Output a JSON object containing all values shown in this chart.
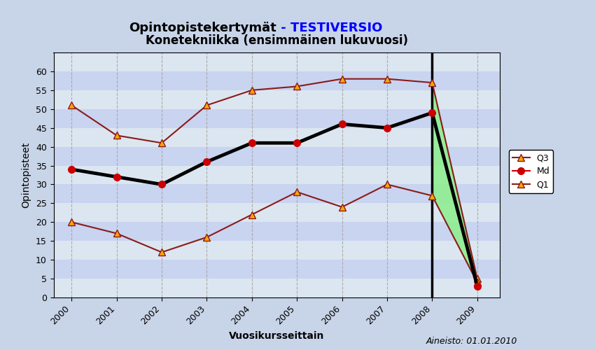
{
  "title1": "Opintopistekertymät",
  "title1_suffix": " - TESTIVERSIO",
  "title2": "Konetekniikka (ensimmäinen lukuvuosi)",
  "xlabel": "Vuosikursseittain",
  "ylabel": "Opintopisteet",
  "footnote": "Aineisto: 01.01.2010",
  "years": [
    2000,
    2001,
    2002,
    2003,
    2004,
    2005,
    2006,
    2007,
    2008,
    2009
  ],
  "Q3": [
    51,
    43,
    41,
    51,
    55,
    56,
    58,
    58,
    57,
    5
  ],
  "Md": [
    34,
    32,
    30,
    36,
    41,
    41,
    46,
    45,
    49,
    3
  ],
  "Q1": [
    20,
    17,
    12,
    16,
    22,
    28,
    24,
    30,
    27,
    4
  ],
  "bg_color": "#c8d4e8",
  "stripe_color1": "#dce6f0",
  "stripe_color2": "#c8d4f0",
  "Q3_color": "#8b1a1a",
  "Q1_color": "#8b1a1a",
  "Md_line_color": "#000000",
  "Md_marker_color": "#cc0000",
  "fill_color": "#90ee90",
  "ylim": [
    0,
    65
  ],
  "yticks": [
    0,
    5,
    10,
    15,
    20,
    25,
    30,
    35,
    40,
    45,
    50,
    55,
    60
  ],
  "title1_fontsize": 13,
  "title2_fontsize": 12,
  "axis_fontsize": 9,
  "label_fontsize": 10
}
